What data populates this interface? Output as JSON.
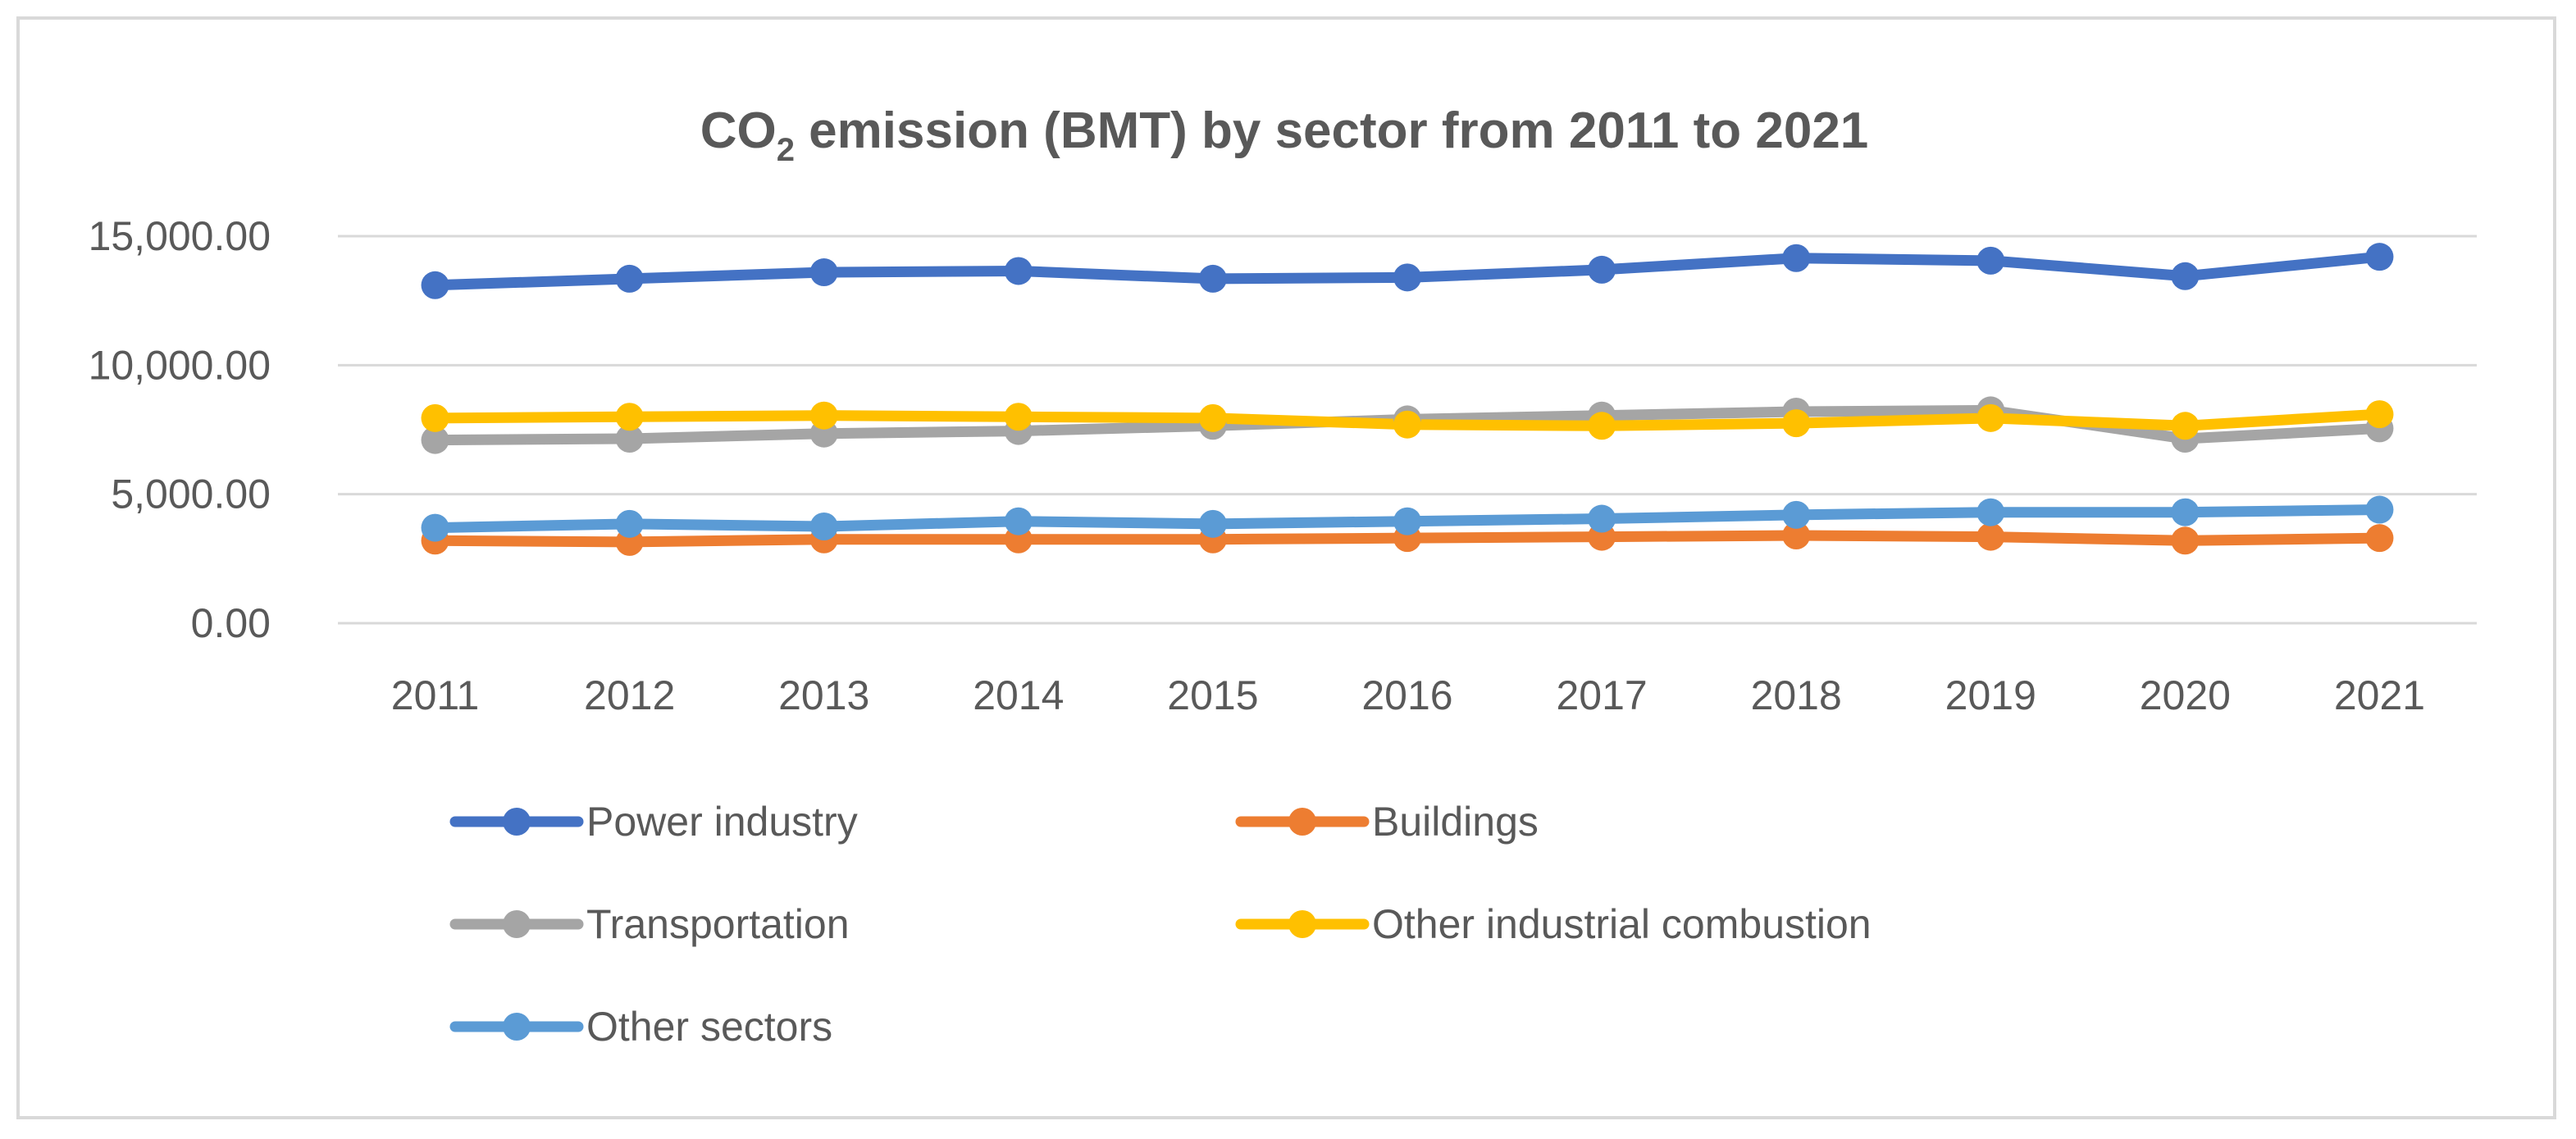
{
  "chart_data": {
    "type": "line",
    "title": {
      "prefix": "CO",
      "subscript": "2",
      "suffix": " emission (BMT) by sector from 2011 to 2021"
    },
    "xlabel": "",
    "ylabel": "",
    "categories": [
      "2011",
      "2012",
      "2013",
      "2014",
      "2015",
      "2016",
      "2017",
      "2018",
      "2019",
      "2020",
      "2021"
    ],
    "ylim": [
      0,
      15000
    ],
    "yticks": [
      0,
      5000,
      10000,
      15000
    ],
    "ytick_labels": [
      "0.00",
      "5,000.00",
      "10,000.00",
      "15,000.00"
    ],
    "grid": true,
    "legend_position": "bottom",
    "series": [
      {
        "name": "Power industry",
        "color": "#4472c4",
        "values": [
          13100,
          13350,
          13600,
          13650,
          13350,
          13400,
          13700,
          14150,
          14050,
          13450,
          14200
        ]
      },
      {
        "name": "Buildings",
        "color": "#ed7d31",
        "values": [
          3200,
          3150,
          3250,
          3250,
          3250,
          3300,
          3350,
          3400,
          3350,
          3200,
          3300
        ]
      },
      {
        "name": "Transportation",
        "color": "#a5a5a5",
        "values": [
          7100,
          7150,
          7350,
          7450,
          7650,
          7900,
          8050,
          8200,
          8250,
          7150,
          7550
        ]
      },
      {
        "name": "Other industrial combustion",
        "color": "#ffc000",
        "values": [
          7950,
          8000,
          8050,
          8000,
          7950,
          7700,
          7650,
          7750,
          7950,
          7650,
          8100
        ]
      },
      {
        "name": "Other sectors",
        "color": "#5b9bd5",
        "values": [
          3700,
          3850,
          3750,
          3950,
          3850,
          3950,
          4050,
          4200,
          4300,
          4300,
          4400
        ]
      }
    ]
  }
}
